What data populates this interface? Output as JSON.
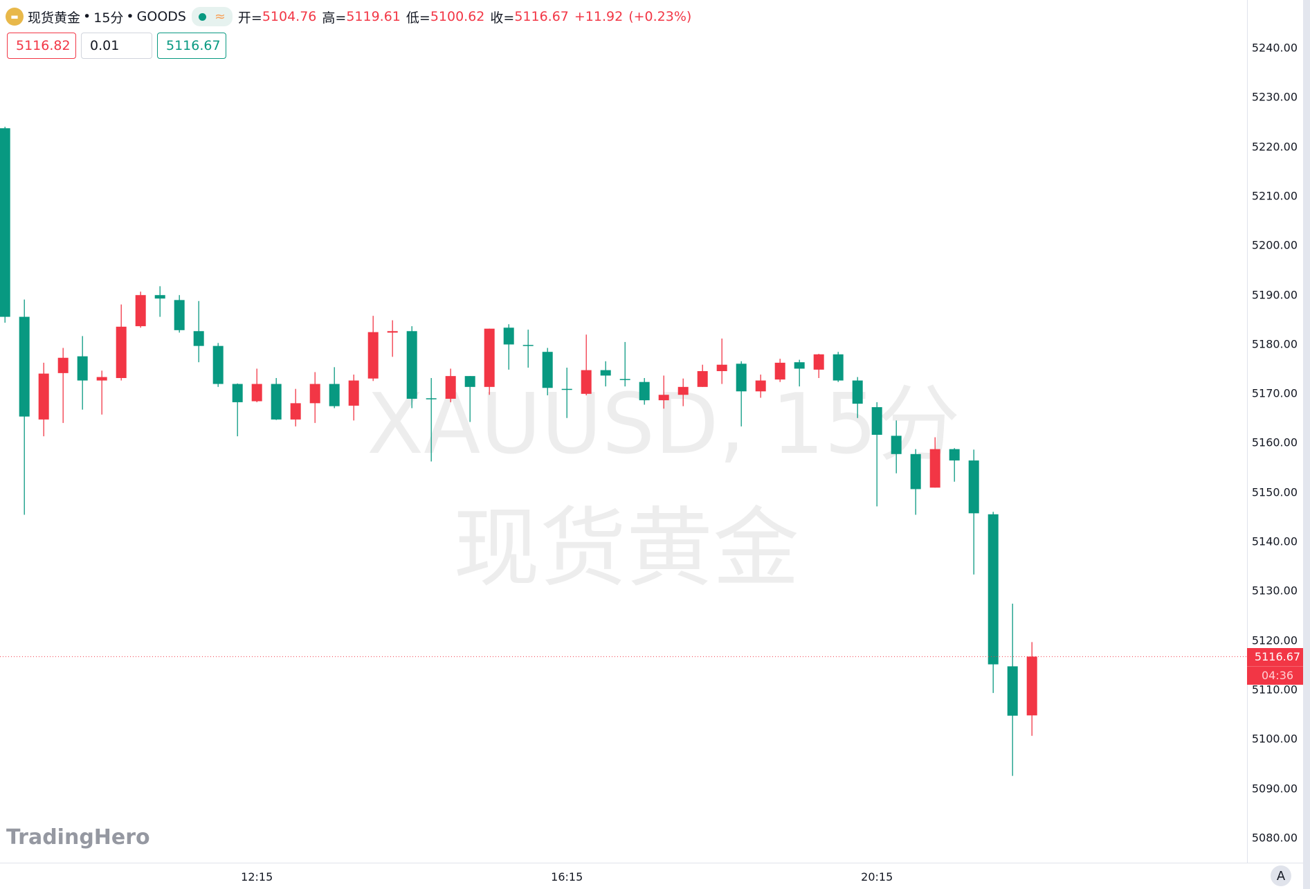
{
  "header": {
    "symbol": "现货黄金",
    "interval": "15分",
    "source": "GOODS",
    "sep": "•",
    "status_icon": "market-open-dot",
    "delay_icon": "approx-icon",
    "delay_glyph": "≈",
    "open_label": "开=",
    "open": "5104.76",
    "high_label": "高=",
    "high": "5119.61",
    "low_label": "低=",
    "low": "5100.62",
    "close_label": "收=",
    "close": "5116.67",
    "change": "+11.92",
    "change_pct": "(+0.23%)"
  },
  "trade": {
    "sell": "5116.82",
    "qty": "0.01",
    "buy": "5116.67"
  },
  "watermark": {
    "line1": "XAUUSD, 15分",
    "line2": "现货黄金"
  },
  "brand": "TradingHero",
  "last_price": {
    "value": "5116.67",
    "countdown": "04:36"
  },
  "auto_scale_label": "A",
  "colors": {
    "up": "#f23645",
    "down": "#089981"
  },
  "chart_data": {
    "type": "candlestick",
    "interval": "15m",
    "ylim": [
      5075,
      5245
    ],
    "yticks": [
      "5240.00",
      "5230.00",
      "5220.00",
      "5210.00",
      "5200.00",
      "5190.00",
      "5180.00",
      "5170.00",
      "5160.00",
      "5150.00",
      "5140.00",
      "5130.00",
      "5120.00",
      "5110.00",
      "5100.00",
      "5090.00",
      "5080.00"
    ],
    "xticks": [
      {
        "label": "12:15",
        "index": 13
      },
      {
        "label": "16:15",
        "index": 29
      },
      {
        "label": "20:15",
        "index": 45
      }
    ],
    "ohlc": [
      [
        5223.7,
        5224.0,
        5184.3,
        5185.5
      ],
      [
        5185.5,
        5189.0,
        5145.4,
        5165.3
      ],
      [
        5164.7,
        5176.2,
        5161.3,
        5174.0
      ],
      [
        5174.1,
        5179.2,
        5164.0,
        5177.2
      ],
      [
        5177.5,
        5181.6,
        5166.7,
        5172.6
      ],
      [
        5172.6,
        5174.6,
        5165.7,
        5173.3
      ],
      [
        5173.1,
        5188.0,
        5172.6,
        5183.5
      ],
      [
        5183.6,
        5190.6,
        5183.3,
        5189.9
      ],
      [
        5189.9,
        5191.7,
        5185.5,
        5189.2
      ],
      [
        5188.9,
        5189.9,
        5182.3,
        5182.8
      ],
      [
        5182.6,
        5188.7,
        5176.3,
        5179.6
      ],
      [
        5179.6,
        5180.2,
        5171.3,
        5171.9
      ],
      [
        5171.9,
        5172.0,
        5161.3,
        5168.2
      ],
      [
        5168.4,
        5175.0,
        5168.2,
        5171.9
      ],
      [
        5171.9,
        5173.1,
        5164.6,
        5164.7
      ],
      [
        5164.7,
        5170.9,
        5163.3,
        5168.0
      ],
      [
        5168.0,
        5174.3,
        5164.0,
        5171.9
      ],
      [
        5171.9,
        5175.3,
        5167.0,
        5167.4
      ],
      [
        5167.5,
        5173.8,
        5164.5,
        5172.6
      ],
      [
        5173.0,
        5185.7,
        5172.5,
        5182.4
      ],
      [
        5182.3,
        5184.8,
        5177.4,
        5182.6
      ],
      [
        5182.6,
        5183.6,
        5167.0,
        5168.9
      ],
      [
        5169.0,
        5173.1,
        5156.2,
        5168.9
      ],
      [
        5168.9,
        5175.0,
        5168.2,
        5173.5
      ],
      [
        5173.5,
        5173.5,
        5164.2,
        5171.3
      ],
      [
        5171.3,
        5183.1,
        5169.7,
        5183.1
      ],
      [
        5183.3,
        5184.0,
        5174.8,
        5179.9
      ],
      [
        5179.8,
        5182.9,
        5175.2,
        5179.6
      ],
      [
        5178.4,
        5179.2,
        5169.6,
        5171.1
      ],
      [
        5170.9,
        5175.2,
        5165.0,
        5170.7
      ],
      [
        5169.9,
        5181.9,
        5169.6,
        5174.7
      ],
      [
        5174.7,
        5176.5,
        5171.4,
        5173.6
      ],
      [
        5172.9,
        5180.4,
        5171.4,
        5172.7
      ],
      [
        5172.3,
        5173.1,
        5167.7,
        5168.6
      ],
      [
        5168.6,
        5173.6,
        5166.9,
        5169.7
      ],
      [
        5169.7,
        5173.0,
        5167.4,
        5171.3
      ],
      [
        5171.3,
        5175.8,
        5171.3,
        5174.5
      ],
      [
        5174.5,
        5181.1,
        5171.9,
        5175.8
      ],
      [
        5176.0,
        5176.5,
        5163.3,
        5170.4
      ],
      [
        5170.4,
        5173.8,
        5169.1,
        5172.6
      ],
      [
        5172.8,
        5177.0,
        5172.3,
        5176.2
      ],
      [
        5176.3,
        5176.8,
        5171.4,
        5175.0
      ],
      [
        5174.8,
        5178.0,
        5173.1,
        5177.9
      ],
      [
        5177.9,
        5178.4,
        5172.3,
        5172.6
      ],
      [
        5172.6,
        5173.3,
        5165.0,
        5167.9
      ],
      [
        5167.2,
        5168.2,
        5147.1,
        5161.6
      ],
      [
        5161.4,
        5164.5,
        5153.8,
        5157.7
      ],
      [
        5157.7,
        5158.7,
        5145.4,
        5150.6
      ],
      [
        5150.9,
        5161.1,
        5150.9,
        5158.7
      ],
      [
        5158.7,
        5158.9,
        5152.1,
        5156.4
      ],
      [
        5156.4,
        5158.6,
        5133.3,
        5145.7
      ],
      [
        5145.5,
        5146.0,
        5109.3,
        5115.1
      ],
      [
        5114.7,
        5127.4,
        5092.5,
        5104.7
      ],
      [
        5104.76,
        5119.61,
        5100.62,
        5116.67
      ]
    ],
    "last_price_line": 5116.67
  }
}
